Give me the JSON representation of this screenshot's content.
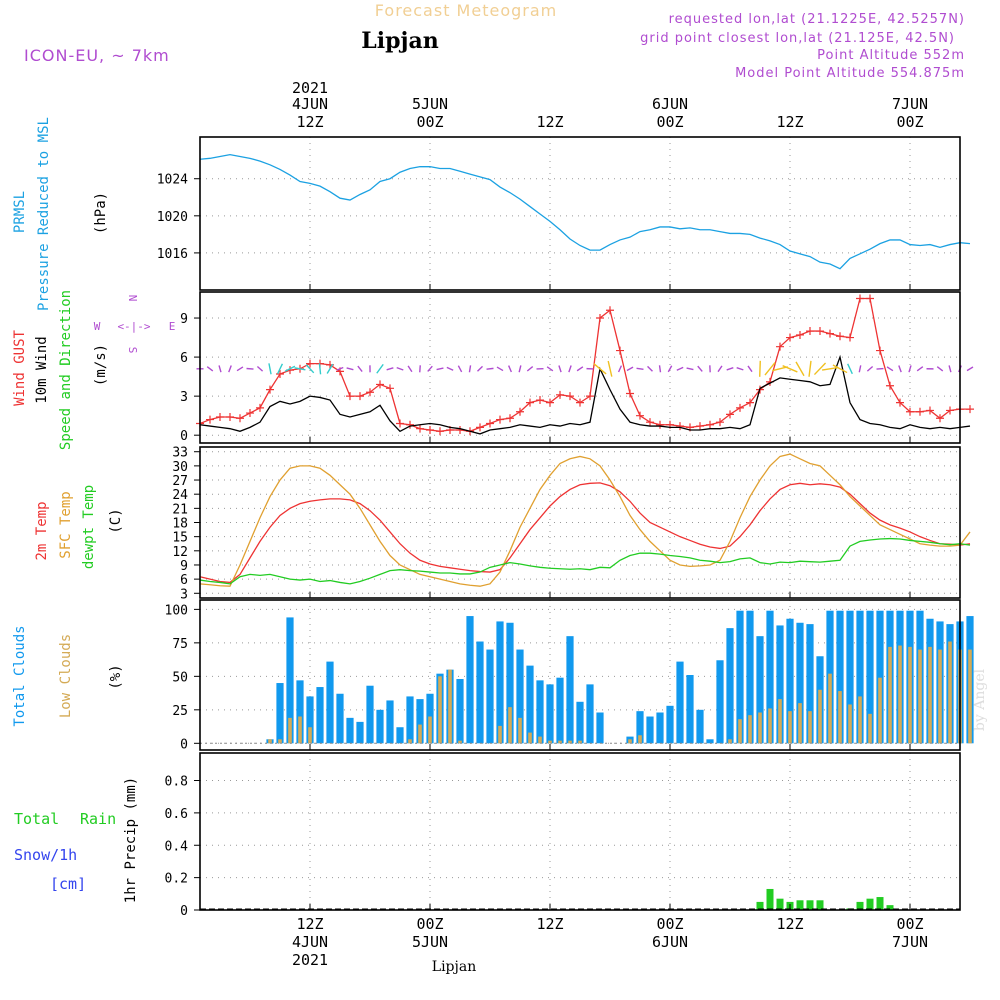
{
  "header": {
    "title": "Forecast Meteogram",
    "location": "Lipjan",
    "model": "ICON-EU, ~ 7km",
    "requested": "requested lon,lat (21.1225E, 42.5257N)",
    "grid_point": "grid point closest lon,lat (21.125E, 42.5N)",
    "point_altitude": "Point Altitude 552m",
    "model_altitude": "Model Point Altitude 554.875m",
    "footer_location": "Lipjan",
    "watermark": "by Angel"
  },
  "colors": {
    "pressure": "#1ba1e2",
    "gust": "#ee3333",
    "wind": "#000000",
    "temp2m": "#ee3333",
    "sfc": "#e0a030",
    "dewpt": "#22cc22",
    "total_clouds": "#1199ee",
    "low_clouds": "#d4aa55",
    "rain": "#22cc22",
    "snow": "#3344ee",
    "purple": "#b04cd0"
  },
  "time_axis": {
    "x_range_hours": [
      0,
      76
    ],
    "top_year": "2021",
    "ticks": [
      {
        "h": 11,
        "top": "4JUN",
        "bottom": "12Z",
        "bottom2": "4JUN",
        "bottom3": "2021",
        "top2": "12Z"
      },
      {
        "h": 23,
        "top": "5JUN",
        "top2": "00Z",
        "bottom": "00Z",
        "bottom2": "5JUN"
      },
      {
        "h": 35,
        "top": "",
        "top2": "12Z",
        "bottom": "12Z",
        "bottom2": ""
      },
      {
        "h": 47,
        "top": "6JUN",
        "top2": "00Z",
        "bottom": "00Z",
        "bottom2": "6JUN"
      },
      {
        "h": 59,
        "top": "",
        "top2": "12Z",
        "bottom": "12Z",
        "bottom2": ""
      },
      {
        "h": 71,
        "top": "7JUN",
        "top2": "00Z",
        "bottom": "00Z",
        "bottom2": "7JUN"
      }
    ]
  },
  "chart_data": [
    {
      "type": "line",
      "title": "PRMSL Pressure Reduced to MSL",
      "ylabel": "(hPa)",
      "label_lines": [
        "PRMSL",
        "Pressure Reduced to MSL"
      ],
      "ylim": [
        1012,
        1028.5
      ],
      "yticks": [
        1016,
        1020,
        1024
      ],
      "series": [
        {
          "name": "PRMSL",
          "values": [
            1026.1,
            1026.2,
            1026.4,
            1026.6,
            1026.4,
            1026.2,
            1025.9,
            1025.5,
            1025.0,
            1024.4,
            1023.7,
            1023.5,
            1023.2,
            1022.6,
            1021.9,
            1021.7,
            1022.3,
            1022.8,
            1023.7,
            1024.0,
            1024.7,
            1025.1,
            1025.3,
            1025.3,
            1025.1,
            1025.1,
            1024.8,
            1024.5,
            1024.2,
            1023.9,
            1023.1,
            1022.5,
            1021.8,
            1021.0,
            1020.2,
            1019.4,
            1018.5,
            1017.5,
            1016.8,
            1016.3,
            1016.3,
            1016.9,
            1017.4,
            1017.7,
            1018.3,
            1018.5,
            1018.8,
            1018.8,
            1018.6,
            1018.7,
            1018.5,
            1018.5,
            1018.3,
            1018.1,
            1018.1,
            1018.0,
            1017.6,
            1017.3,
            1016.9,
            1016.2,
            1015.9,
            1015.6,
            1015.0,
            1014.8,
            1014.3,
            1015.4,
            1015.9,
            1016.4,
            1017.0,
            1017.4,
            1017.4,
            1016.9,
            1016.8,
            1016.9,
            1016.6,
            1016.9,
            1017.1,
            1017.0
          ]
        }
      ]
    },
    {
      "type": "line",
      "title": "Wind GUST / 10m Wind Speed and Direction",
      "ylabel": "(m/s)",
      "label_lines": [
        "Wind GUST",
        "10m Wind",
        "Speed and Direction"
      ],
      "ylim": [
        -0.6,
        11
      ],
      "yticks": [
        0,
        3,
        6,
        9
      ],
      "compass": {
        "n": "N",
        "s": "S",
        "w": "W",
        "e": "E",
        "arrow": "<-|->"
      },
      "series": [
        {
          "name": "Wind GUST",
          "values": [
            0.9,
            1.2,
            1.4,
            1.4,
            1.3,
            1.7,
            2.1,
            3.5,
            4.7,
            5.0,
            5.1,
            5.5,
            5.5,
            5.4,
            4.9,
            3.0,
            3.0,
            3.3,
            3.9,
            3.6,
            0.9,
            0.8,
            0.5,
            0.4,
            0.3,
            0.4,
            0.4,
            0.3,
            0.6,
            0.9,
            1.2,
            1.3,
            1.8,
            2.5,
            2.7,
            2.5,
            3.1,
            3.0,
            2.5,
            3.0,
            9.0,
            9.6,
            6.5,
            3.2,
            1.5,
            1.0,
            0.8,
            0.8,
            0.7,
            0.6,
            0.7,
            0.8,
            1.0,
            1.6,
            2.1,
            2.5,
            3.5,
            4.1,
            6.8,
            7.5,
            7.7,
            8.0,
            8.0,
            7.8,
            7.6,
            7.5,
            10.5,
            10.5,
            6.5,
            3.8,
            2.5,
            1.8,
            1.8,
            1.9,
            1.3,
            1.9,
            2.0,
            2.0
          ]
        },
        {
          "name": "10m Wind",
          "values": [
            0.8,
            0.7,
            0.6,
            0.5,
            0.3,
            0.6,
            1.0,
            2.2,
            2.6,
            2.4,
            2.6,
            3.0,
            2.9,
            2.7,
            1.6,
            1.4,
            1.6,
            1.8,
            2.3,
            1.1,
            0.3,
            0.7,
            0.8,
            0.9,
            0.8,
            0.6,
            0.5,
            0.3,
            0.1,
            0.4,
            0.5,
            0.6,
            0.8,
            0.7,
            0.6,
            0.8,
            0.7,
            0.9,
            0.8,
            1.0,
            5.1,
            3.5,
            2.0,
            1.0,
            0.8,
            0.7,
            0.7,
            0.6,
            0.6,
            0.4,
            0.4,
            0.5,
            0.5,
            0.6,
            0.5,
            0.8,
            3.6,
            4.0,
            4.4,
            4.3,
            4.2,
            4.1,
            3.8,
            3.9,
            6.0,
            2.5,
            1.2,
            0.9,
            0.8,
            0.6,
            0.5,
            0.8,
            0.6,
            0.5,
            0.6,
            0.5,
            0.6,
            0.7
          ]
        }
      ]
    },
    {
      "type": "line",
      "title": "2m Temp / SFC Temp / dewpt Temp",
      "ylabel": "(C)",
      "label_lines": [
        "2m Temp",
        "SFC Temp",
        "dewpt Temp"
      ],
      "ylim": [
        2,
        34
      ],
      "yticks": [
        3,
        6,
        9,
        12,
        15,
        18,
        21,
        24,
        27,
        30,
        33
      ],
      "series": [
        {
          "name": "2m Temp",
          "values": [
            6.5,
            6.0,
            5.5,
            5.3,
            7.0,
            10.5,
            14.0,
            17.0,
            19.5,
            21.0,
            22.0,
            22.5,
            22.8,
            23.0,
            23.0,
            22.8,
            22.0,
            20.5,
            18.5,
            16.0,
            13.5,
            11.5,
            10.0,
            9.2,
            8.7,
            8.4,
            8.1,
            7.8,
            7.6,
            7.5,
            8.0,
            10.5,
            13.5,
            16.5,
            19.0,
            21.5,
            23.5,
            25.0,
            26.0,
            26.3,
            26.4,
            25.8,
            24.5,
            22.5,
            20.0,
            18.0,
            17.0,
            16.0,
            15.0,
            14.2,
            13.4,
            12.8,
            12.5,
            13.0,
            15.0,
            17.5,
            20.5,
            23.0,
            25.0,
            26.0,
            26.3,
            26.0,
            26.2,
            26.0,
            25.5,
            24.0,
            22.0,
            20.0,
            18.5,
            17.5,
            16.8,
            16.0,
            15.0,
            14.2,
            13.5,
            13.4,
            13.2,
            13.5
          ]
        },
        {
          "name": "SFC Temp",
          "values": [
            5.0,
            4.8,
            4.6,
            4.5,
            9.0,
            14.0,
            19.0,
            23.5,
            27.0,
            29.5,
            30.0,
            30.0,
            29.5,
            28.0,
            26.0,
            24.0,
            21.0,
            17.5,
            14.0,
            11.0,
            9.0,
            8.0,
            7.0,
            6.5,
            6.0,
            5.5,
            5.0,
            4.7,
            4.5,
            5.0,
            7.5,
            12.0,
            17.0,
            21.0,
            25.0,
            28.0,
            30.5,
            31.5,
            32.0,
            31.5,
            30.0,
            27.0,
            23.5,
            19.5,
            16.5,
            14.0,
            12.0,
            10.0,
            9.0,
            8.7,
            8.8,
            9.0,
            10.0,
            14.0,
            19.0,
            23.5,
            27.0,
            30.0,
            32.0,
            32.5,
            31.5,
            30.5,
            30.0,
            28.0,
            26.0,
            23.5,
            21.5,
            19.5,
            17.5,
            16.5,
            15.5,
            14.5,
            13.5,
            13.2,
            13.0,
            13.0,
            13.2,
            16.0
          ]
        },
        {
          "name": "dewpt Temp",
          "values": [
            5.8,
            5.5,
            5.3,
            5.0,
            6.5,
            7.0,
            6.8,
            7.0,
            6.5,
            6.0,
            5.8,
            6.0,
            5.5,
            5.7,
            5.3,
            5.0,
            5.5,
            6.2,
            7.0,
            7.8,
            8.0,
            7.8,
            7.7,
            7.5,
            7.3,
            7.3,
            7.1,
            7.1,
            7.5,
            8.5,
            9.0,
            9.5,
            9.2,
            8.8,
            8.5,
            8.3,
            8.2,
            8.1,
            8.2,
            8.0,
            8.5,
            8.4,
            10.0,
            11.0,
            11.5,
            11.5,
            11.3,
            11.0,
            10.8,
            10.5,
            10.0,
            9.8,
            9.5,
            9.7,
            10.3,
            10.5,
            9.5,
            9.2,
            9.6,
            9.5,
            9.8,
            9.7,
            9.6,
            9.8,
            10.0,
            13.0,
            14.0,
            14.3,
            14.5,
            14.6,
            14.5,
            14.2,
            14.0,
            13.8,
            13.5,
            13.3,
            13.5,
            13.2
          ]
        }
      ]
    },
    {
      "type": "bar",
      "title": "Total Clouds / Low Clouds",
      "ylabel": "(%)",
      "label_lines": [
        "Total Clouds",
        "Low Clouds"
      ],
      "ylim": [
        -5,
        107
      ],
      "yticks": [
        0,
        25,
        50,
        75,
        100
      ],
      "series": [
        {
          "name": "Total Clouds",
          "values": [
            0,
            0,
            0,
            0,
            0,
            0,
            0,
            3,
            45,
            94,
            47,
            35,
            42,
            61,
            37,
            19,
            16,
            43,
            25,
            32,
            12,
            35,
            33,
            37,
            52,
            55,
            48,
            95,
            76,
            70,
            91,
            90,
            70,
            58,
            47,
            44,
            49,
            80,
            31,
            44,
            23,
            0,
            0,
            5,
            24,
            20,
            23,
            28,
            61,
            51,
            25,
            3,
            62,
            86,
            99,
            99,
            80,
            99,
            88,
            93,
            90,
            89,
            65,
            99,
            99,
            99,
            99,
            99,
            99,
            99,
            99,
            99,
            99,
            93,
            91,
            89,
            91,
            95
          ]
        },
        {
          "name": "Low Clouds",
          "values": [
            0,
            0,
            0,
            0,
            0,
            0,
            0,
            3,
            3,
            19,
            20,
            12,
            0,
            0,
            0,
            0,
            0,
            0,
            0,
            0,
            0,
            3,
            14,
            20,
            50,
            55,
            2,
            0,
            0,
            0,
            13,
            27,
            19,
            8,
            5,
            2,
            2,
            2,
            2,
            0,
            0,
            0,
            0,
            3,
            6,
            0,
            0,
            0,
            0,
            0,
            0,
            0,
            0,
            3,
            18,
            21,
            23,
            26,
            33,
            24,
            30,
            24,
            40,
            52,
            39,
            29,
            35,
            22,
            49,
            72,
            73,
            72,
            70,
            72,
            70,
            76,
            70,
            70
          ]
        }
      ]
    },
    {
      "type": "bar",
      "title": "1hr Precip (mm)",
      "ylabel": "1hr Precip (mm)",
      "label_lines": [
        "Total",
        "Rain",
        "Snow/1h",
        "[cm]"
      ],
      "ylim": [
        0,
        0.97
      ],
      "yticks": [
        0,
        0.2,
        0.4,
        0.6,
        0.8
      ],
      "ytick_labels": [
        "0",
        "0.2",
        "0.4",
        "0.6",
        "0.8"
      ],
      "series": [
        {
          "name": "Rain",
          "values": [
            0,
            0,
            0,
            0,
            0,
            0,
            0,
            0,
            0,
            0,
            0,
            0,
            0,
            0,
            0,
            0,
            0,
            0,
            0,
            0,
            0,
            0,
            0,
            0,
            0,
            0,
            0,
            0,
            0,
            0,
            0,
            0,
            0,
            0,
            0,
            0,
            0,
            0,
            0,
            0,
            0,
            0,
            0,
            0,
            0,
            0,
            0,
            0,
            0,
            0,
            0,
            0,
            0,
            0,
            0,
            0,
            0.05,
            0.13,
            0.07,
            0.05,
            0.06,
            0.06,
            0.06,
            0,
            0,
            0.01,
            0.05,
            0.07,
            0.08,
            0.03,
            0,
            0,
            0,
            0,
            0,
            0,
            0,
            0
          ]
        }
      ]
    }
  ]
}
